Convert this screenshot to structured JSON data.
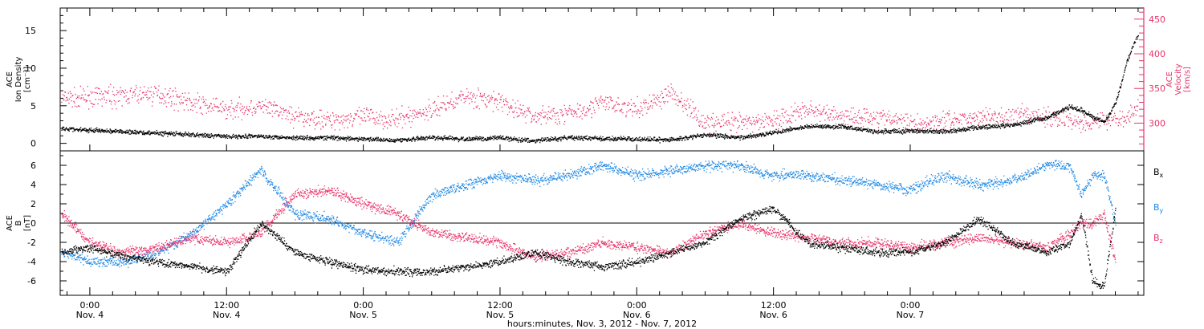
{
  "colors": {
    "black": "#000000",
    "pink": "#e8336a",
    "blue": "#1e88e5"
  },
  "chart_data": [
    {
      "type": "scatter",
      "panel": "top",
      "ylabel_left": [
        "ACE",
        "Ion Density",
        "[cm⁻³]"
      ],
      "ylabel_right": [
        "ACE",
        "Velocity",
        "[km/s]"
      ],
      "left_ticks": [
        0,
        5,
        10,
        15
      ],
      "right_ticks": [
        300,
        350,
        400,
        450
      ],
      "ylim_left": [
        -1,
        18
      ],
      "ylim_right": [
        260,
        466
      ],
      "xlim_hours": [
        -2.6,
        92.5
      ],
      "series": [
        {
          "axis": "left",
          "color": "#000000",
          "x": [
            -2.5,
            0,
            3,
            6,
            9,
            12,
            15,
            18,
            21,
            24,
            27,
            30,
            33,
            36,
            39,
            42,
            45,
            48,
            51,
            54,
            57,
            60,
            63,
            66,
            69,
            72,
            75,
            78,
            81,
            84,
            86,
            87,
            88,
            89,
            89.5,
            90,
            90.5,
            91,
            91.5,
            92
          ],
          "y": [
            2,
            1.8,
            1.6,
            1.4,
            1.2,
            1,
            1,
            0.8,
            0.8,
            0.6,
            0.5,
            0.8,
            0.6,
            0.8,
            0.4,
            0.8,
            0.7,
            0.6,
            0.5,
            1.2,
            0.8,
            1.5,
            2.3,
            2.3,
            1.6,
            1.7,
            1.6,
            2.2,
            2.5,
            3.5,
            5,
            4.5,
            3.5,
            3,
            4,
            5.5,
            8,
            11,
            13,
            14.5
          ]
        },
        {
          "axis": "right",
          "color": "#e8336a",
          "x": [
            -2.5,
            0,
            3,
            6,
            9,
            12,
            15,
            18,
            21,
            24,
            27,
            30,
            33,
            36,
            39,
            42,
            45,
            48,
            51,
            54,
            57,
            60,
            63,
            66,
            69,
            72,
            75,
            78,
            81,
            84,
            86,
            87,
            88,
            89,
            89.5,
            90,
            90.5,
            91,
            91.5,
            92
          ],
          "y": [
            335,
            338,
            340,
            343,
            330,
            320,
            325,
            310,
            305,
            310,
            305,
            320,
            340,
            330,
            310,
            315,
            330,
            320,
            345,
            300,
            300,
            305,
            320,
            310,
            310,
            300,
            305,
            310,
            310,
            310,
            305,
            300,
            305,
            305,
            307,
            308,
            309,
            310,
            316,
            325
          ]
        }
      ]
    },
    {
      "type": "scatter",
      "panel": "bottom",
      "ylabel": [
        "ACE",
        "B",
        "[nT]"
      ],
      "ticks": [
        -6,
        -4,
        -2,
        0,
        2,
        4,
        6
      ],
      "ylim": [
        -7.5,
        7.5
      ],
      "xlim_hours": [
        -2.6,
        92.5
      ],
      "x_tick_labels": [
        {
          "time": "0:00",
          "date": "Nov. 4"
        },
        {
          "time": "12:00",
          "date": "Nov. 4"
        },
        {
          "time": "0:00",
          "date": "Nov. 5"
        },
        {
          "time": "12:00",
          "date": "Nov. 5"
        },
        {
          "time": "0:00",
          "date": "Nov. 6"
        },
        {
          "time": "12:00",
          "date": "Nov. 6"
        },
        {
          "time": "0:00",
          "date": "Nov. 7"
        }
      ],
      "xlabel": "hours:minutes, Nov.  3, 2012 - Nov.  7, 2012",
      "series": [
        {
          "name": "Bx",
          "color": "#000000",
          "x": [
            -2.5,
            0,
            3,
            6,
            9,
            12,
            15,
            18,
            21,
            24,
            27,
            30,
            33,
            36,
            39,
            42,
            45,
            48,
            51,
            54,
            57,
            60,
            63,
            66,
            69,
            72,
            75,
            78,
            81,
            84,
            86,
            87,
            88,
            89,
            90
          ],
          "y": [
            -3,
            -2.5,
            -3.5,
            -4,
            -4.5,
            -5,
            0,
            -3,
            -4,
            -4.8,
            -5,
            -5,
            -4.5,
            -4,
            -3,
            -4,
            -4.5,
            -4,
            -3,
            -2,
            0.5,
            1.5,
            -2,
            -2.5,
            -3,
            -3,
            -2,
            0.5,
            -2,
            -3,
            -2,
            1,
            -6,
            -6.5,
            1.5
          ]
        },
        {
          "name": "By",
          "color": "#1e88e5",
          "x": [
            -2.5,
            0,
            3,
            6,
            9,
            12,
            15,
            18,
            21,
            24,
            27,
            30,
            33,
            36,
            39,
            42,
            45,
            48,
            51,
            54,
            57,
            60,
            63,
            66,
            69,
            72,
            75,
            78,
            81,
            84,
            86,
            87,
            88,
            89,
            90
          ],
          "y": [
            -3,
            -4,
            -4,
            -3,
            -1,
            2,
            5.5,
            1,
            0.5,
            -1,
            -2,
            3,
            4,
            5,
            4.5,
            5,
            6,
            5,
            5.5,
            6,
            6,
            5,
            5,
            4.5,
            4,
            3.5,
            5,
            4,
            4.5,
            6,
            6,
            3,
            5,
            5,
            0
          ]
        },
        {
          "name": "Bz",
          "color": "#e8336a",
          "x": [
            -2.5,
            0,
            3,
            6,
            9,
            12,
            15,
            18,
            21,
            24,
            27,
            30,
            33,
            36,
            39,
            42,
            45,
            48,
            51,
            54,
            57,
            60,
            63,
            66,
            69,
            72,
            75,
            78,
            81,
            84,
            86,
            87,
            88,
            89,
            90
          ],
          "y": [
            1,
            -2,
            -3,
            -2.5,
            -1.5,
            -2,
            -1,
            3,
            3.5,
            2,
            1,
            -1,
            -1.5,
            -2,
            -3.5,
            -3,
            -2,
            -2.5,
            -3,
            -1,
            0,
            -1,
            -1.5,
            -2,
            -2,
            -2.5,
            -2,
            -1.5,
            -2,
            -2.5,
            -1,
            0,
            0,
            1,
            -4
          ]
        }
      ],
      "legend": [
        {
          "label": "Bx",
          "sub": "x",
          "color": "#000000"
        },
        {
          "label": "By",
          "sub": "y",
          "color": "#1e88e5"
        },
        {
          "label": "Bz",
          "sub": "z",
          "color": "#e8336a"
        }
      ]
    }
  ]
}
